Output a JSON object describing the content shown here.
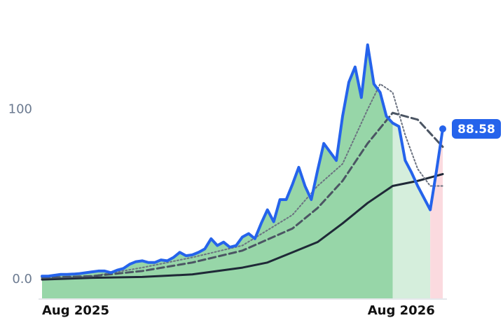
{
  "chart_data": {
    "type": "line",
    "xlim": [
      0,
      64
    ],
    "xticks": [
      {
        "value": 0,
        "label": "Aug 2025"
      },
      {
        "value": 52,
        "label": "Aug 2026"
      }
    ],
    "ylim": [
      -11.5,
      152
    ],
    "yticks": [
      {
        "value": 0,
        "label": "0.0"
      },
      100
    ],
    "fill_bands": [
      {
        "to": 56,
        "color": "#97d6a8"
      },
      {
        "to": 62,
        "color": "#d5eedc"
      },
      {
        "to": 64,
        "color": "#fbdadf"
      }
    ],
    "series": [
      {
        "color": "#2563eb",
        "style": "solid",
        "width": 4,
        "fill": true,
        "x": [
          0,
          1,
          2,
          3,
          4,
          5,
          6,
          7,
          8,
          9,
          10,
          11,
          12,
          13,
          14,
          15,
          16,
          17,
          18,
          19,
          20,
          21,
          22,
          23,
          24,
          25,
          26,
          27,
          28,
          29,
          30,
          31,
          32,
          33,
          34,
          35,
          36,
          37,
          38,
          39,
          40,
          41,
          42,
          43,
          44,
          45,
          46,
          47,
          48,
          49,
          50,
          51,
          52,
          53,
          54,
          55,
          56,
          57,
          58,
          59,
          60,
          61,
          62,
          63,
          64
        ],
        "values": [
          2,
          2,
          2.5,
          3,
          3,
          3.2,
          3.5,
          4,
          4.5,
          5,
          5,
          4,
          5.5,
          6.5,
          9,
          10.5,
          11,
          10,
          10,
          11.5,
          11,
          13,
          16,
          14,
          14.5,
          16,
          18,
          24,
          20,
          22,
          19,
          20,
          25,
          27,
          24,
          33,
          41,
          34,
          47,
          47,
          56,
          66,
          55,
          47,
          64,
          80,
          75,
          70,
          96,
          116,
          125,
          107,
          138,
          115,
          110,
          96,
          92,
          90,
          70,
          63,
          55,
          48,
          41,
          64,
          88.58
        ]
      },
      {
        "color": "#4b5563",
        "style": "dashed",
        "width": 3,
        "x": [
          0,
          8,
          16,
          24,
          32,
          40,
          44,
          48,
          52,
          56,
          60,
          64
        ],
        "values": [
          1,
          2,
          5,
          10,
          17,
          30,
          42,
          58,
          80,
          98,
          94,
          78
        ]
      },
      {
        "color": "#6b7280",
        "style": "dotted",
        "width": 2,
        "x": [
          0,
          8,
          16,
          24,
          32,
          40,
          44,
          48,
          52,
          54,
          56,
          58,
          60,
          62,
          64
        ],
        "values": [
          1,
          2,
          7,
          13,
          20,
          38,
          55,
          68,
          100,
          115,
          110,
          85,
          65,
          55,
          55
        ]
      },
      {
        "color": "#1f2937",
        "style": "solid",
        "width": 3,
        "x": [
          0,
          8,
          16,
          24,
          32,
          36,
          40,
          44,
          48,
          52,
          56,
          60,
          64
        ],
        "values": [
          0,
          1,
          1.5,
          3,
          7,
          10,
          16,
          22,
          33,
          45,
          55,
          58,
          62
        ]
      }
    ]
  }
}
